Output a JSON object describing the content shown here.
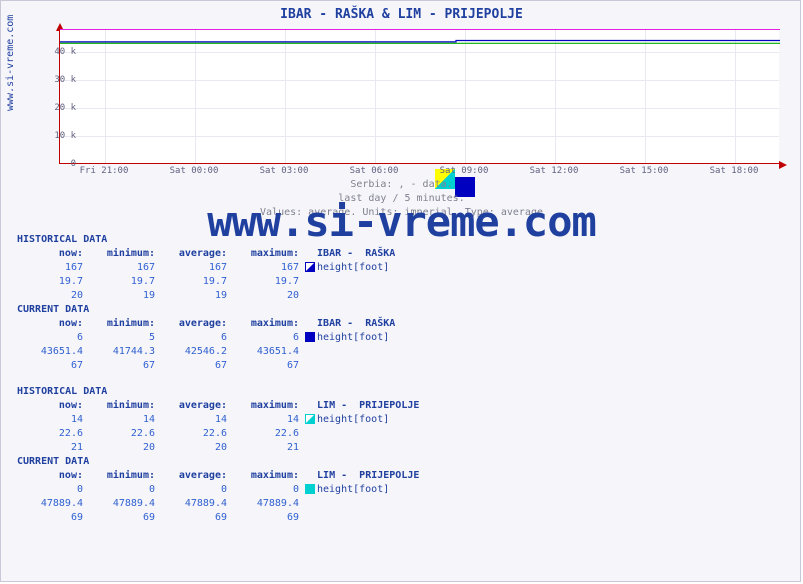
{
  "title": "IBAR -  RAŠKA &  LIM -  PRIJEPOLJE",
  "ylabel": "www.si-vreme.com",
  "watermark": "www.si-vreme.com",
  "subtitle1": "Serbia:  ,   -  data.",
  "subtitle2": "last day / 5 minutes.",
  "subtitle3": "Values: average. Units: imperial. Type: average",
  "chart": {
    "type": "line",
    "background_color": "#ffffff",
    "grid_color": "#e8e8f0",
    "axis_color": "#c00000",
    "ylim": [
      0,
      48000
    ],
    "yticks": [
      0,
      10000,
      20000,
      30000,
      40000
    ],
    "ytick_labels": [
      "0",
      "10 k",
      "20 k",
      "30 k",
      "40 k"
    ],
    "xticks_labels": [
      "Fri 21:00",
      "Sat 00:00",
      "Sat 03:00",
      "Sat 06:00",
      "Sat 09:00",
      "Sat 12:00",
      "Sat 15:00",
      "Sat 18:00"
    ],
    "series": [
      {
        "name": "IBAR - RAŠKA",
        "color": "#0000c0",
        "fill": "#0000c0",
        "segments": [
          [
            0,
            43400
          ],
          [
            0.55,
            43400
          ],
          [
            0.55,
            43900
          ],
          [
            1,
            43900
          ]
        ]
      },
      {
        "name": "LIM - PRIJEPOLJE",
        "color": "#e000e0",
        "segments": [
          [
            0,
            47889
          ],
          [
            1,
            47889
          ]
        ]
      },
      {
        "name": "baseline-green",
        "color": "#00b000",
        "segments": [
          [
            0,
            42900
          ],
          [
            1,
            42900
          ]
        ]
      }
    ]
  },
  "columns": [
    "now:",
    "minimum:",
    "average:",
    "maximum:"
  ],
  "sections": [
    {
      "header": "HISTORICAL DATA",
      "station": "IBAR -  RAŠKA",
      "icon": "half",
      "unit": "height[foot]",
      "rows": [
        [
          "167",
          "167",
          "167",
          "167"
        ],
        [
          "19.7",
          "19.7",
          "19.7",
          "19.7"
        ],
        [
          "20",
          "19",
          "19",
          "20"
        ]
      ]
    },
    {
      "header": "CURRENT DATA",
      "station": "IBAR -  RAŠKA",
      "icon": "fullb",
      "unit": "height[foot]",
      "rows": [
        [
          "6",
          "5",
          "6",
          "6"
        ],
        [
          "43651.4",
          "41744.3",
          "42546.2",
          "43651.4"
        ],
        [
          "67",
          "67",
          "67",
          "67"
        ]
      ]
    },
    {
      "header": "HISTORICAL DATA",
      "station": "LIM -  PRIJEPOLJE",
      "icon": "halfc",
      "unit": "height[foot]",
      "rows": [
        [
          "14",
          "14",
          "14",
          "14"
        ],
        [
          "22.6",
          "22.6",
          "22.6",
          "22.6"
        ],
        [
          "21",
          "20",
          "20",
          "21"
        ]
      ]
    },
    {
      "header": "CURRENT DATA",
      "station": "LIM -  PRIJEPOLJE",
      "icon": "fullc",
      "unit": "height[foot]",
      "rows": [
        [
          "0",
          "0",
          "0",
          "0"
        ],
        [
          "47889.4",
          "47889.4",
          "47889.4",
          "47889.4"
        ],
        [
          "69",
          "69",
          "69",
          "69"
        ]
      ]
    }
  ]
}
